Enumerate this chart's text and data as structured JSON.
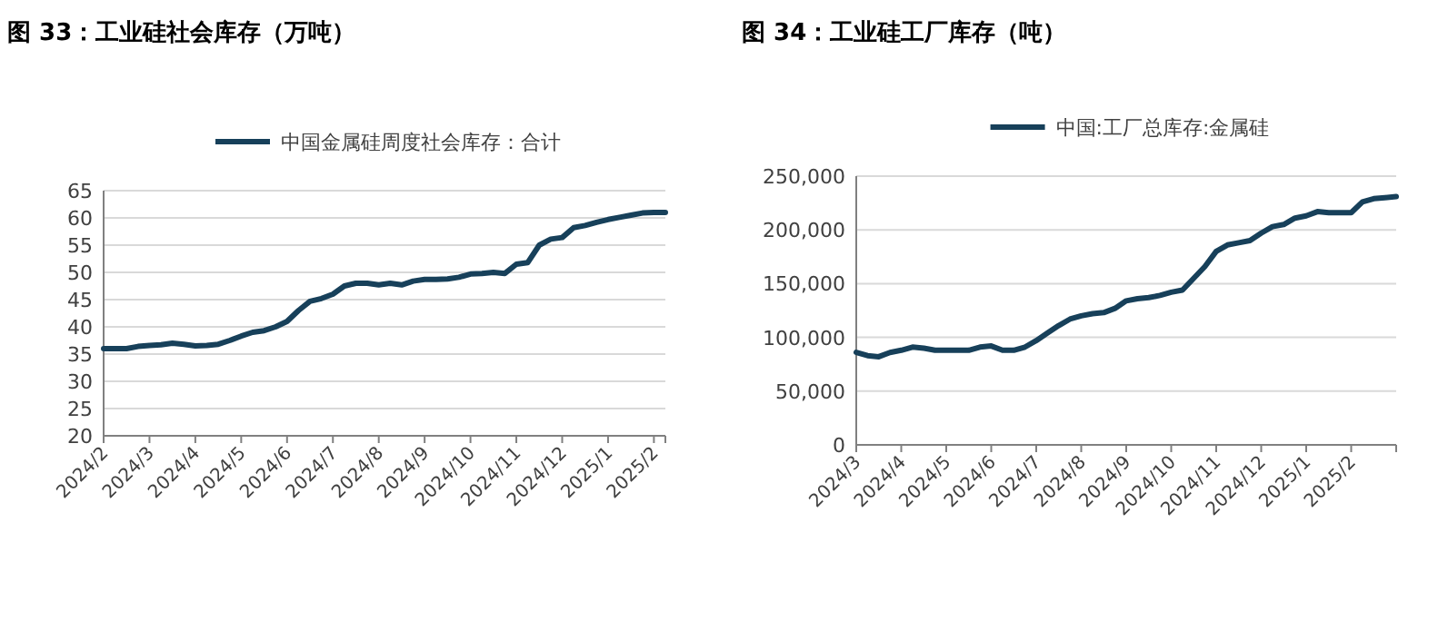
{
  "chart_data": [
    {
      "type": "line",
      "title": "图 33：工业硅社会库存（万吨）",
      "categories": [
        "2024/2",
        null,
        null,
        null,
        "2024/3",
        null,
        null,
        null,
        "2024/4",
        null,
        null,
        null,
        "2024/5",
        null,
        null,
        null,
        "2024/6",
        null,
        null,
        null,
        "2024/7",
        null,
        null,
        null,
        "2024/8",
        null,
        null,
        null,
        "2024/9",
        null,
        null,
        null,
        "2024/10",
        null,
        null,
        null,
        "2024/11",
        null,
        null,
        null,
        "2024/12",
        null,
        null,
        null,
        "2025/1",
        null,
        null,
        null,
        "2025/2",
        null
      ],
      "series": [
        {
          "name": "中国金属硅周度社会库存：合计",
          "color": "#17405a",
          "values": [
            36,
            36,
            36,
            36.4,
            36.6,
            36.7,
            37,
            36.8,
            36.5,
            36.6,
            36.8,
            37.5,
            38.3,
            39,
            39.3,
            40,
            41,
            43,
            44.7,
            45.2,
            46,
            47.5,
            48,
            48,
            47.7,
            48,
            47.7,
            48.4,
            48.7,
            48.7,
            48.8,
            49.1,
            49.7,
            49.8,
            50,
            49.8,
            51.5,
            51.8,
            55,
            56.1,
            56.4,
            58.2,
            58.6,
            59.2,
            59.7,
            60.1,
            60.5,
            60.9,
            61,
            61
          ]
        }
      ],
      "ylim": [
        20,
        65
      ],
      "yticks": [
        20,
        25,
        30,
        35,
        40,
        45,
        50,
        55,
        60,
        65
      ],
      "grid": "y",
      "legend": "top",
      "marker": "none",
      "line_style": "solid"
    },
    {
      "type": "line",
      "title": "图 34：工业硅工厂库存（吨）",
      "categories": [
        "2024/3",
        null,
        null,
        null,
        "2024/4",
        null,
        null,
        null,
        "2024/5",
        null,
        null,
        null,
        "2024/6",
        null,
        null,
        null,
        "2024/7",
        null,
        null,
        null,
        "2024/8",
        null,
        null,
        null,
        "2024/9",
        null,
        null,
        null,
        "2024/10",
        null,
        null,
        null,
        "2024/11",
        null,
        null,
        null,
        "2024/12",
        null,
        null,
        null,
        "2025/1",
        null,
        null,
        null,
        "2025/2",
        null,
        null,
        null,
        null
      ],
      "series": [
        {
          "name": "中国:工厂总库存:金属硅",
          "color": "#17405a",
          "values": [
            86000,
            83000,
            82000,
            86000,
            88000,
            91000,
            90000,
            88000,
            88000,
            88000,
            88000,
            91000,
            92000,
            88000,
            88000,
            91000,
            97000,
            104000,
            111000,
            117000,
            120000,
            122000,
            123000,
            127000,
            134000,
            136000,
            137000,
            139000,
            142000,
            144000,
            155000,
            166000,
            180000,
            186000,
            188000,
            190000,
            197000,
            203000,
            205000,
            211000,
            213000,
            217000,
            216000,
            216000,
            216000,
            226000,
            229000,
            230000,
            231000
          ]
        }
      ],
      "ylim": [
        0,
        250000
      ],
      "yticks": [
        0,
        {
          "value": 50000,
          "label": "50,000"
        },
        {
          "value": 100000,
          "label": "100,000"
        },
        {
          "value": 150000,
          "label": "150,000"
        },
        {
          "value": 200000,
          "label": "200,000"
        },
        {
          "value": 250000,
          "label": "250,000"
        }
      ],
      "grid": "y",
      "legend": "top",
      "marker": "none",
      "line_style": "solid"
    }
  ]
}
